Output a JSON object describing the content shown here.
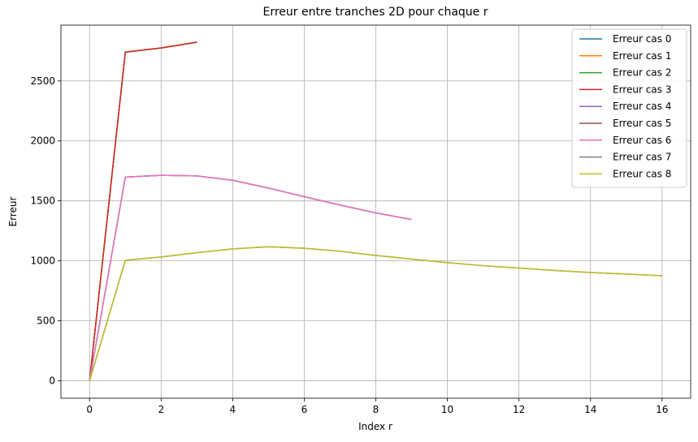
{
  "chart_data": {
    "type": "line",
    "title": "Erreur entre tranches 2D pour chaque r",
    "xlabel": "Index r",
    "ylabel": "Erreur",
    "xlim": [
      -0.8,
      16.8
    ],
    "ylim": [
      -145,
      2965
    ],
    "xticks": [
      0,
      2,
      4,
      6,
      8,
      10,
      12,
      14,
      16
    ],
    "yticks": [
      0,
      500,
      1000,
      1500,
      2000,
      2500
    ],
    "grid": true,
    "legend_position": "top-right",
    "series": [
      {
        "name": "Erreur cas 0",
        "color": "#1f77b4",
        "x": [
          0,
          1,
          2,
          3
        ],
        "values": [
          0,
          2740,
          2775,
          2823
        ]
      },
      {
        "name": "Erreur cas 1",
        "color": "#ff7f0e",
        "x": [
          0,
          1,
          2,
          3
        ],
        "values": [
          0,
          2740,
          2775,
          2823
        ]
      },
      {
        "name": "Erreur cas 2",
        "color": "#2ca02c",
        "x": [
          0,
          1,
          2,
          3
        ],
        "values": [
          0,
          2740,
          2775,
          2823
        ]
      },
      {
        "name": "Erreur cas 3",
        "color": "#d62728",
        "x": [
          0,
          1,
          2,
          3
        ],
        "values": [
          0,
          2740,
          2775,
          2823
        ]
      },
      {
        "name": "Erreur cas 4",
        "color": "#9467bd",
        "x": [
          0,
          1,
          2,
          3,
          4,
          5,
          6,
          7,
          8,
          9
        ],
        "values": [
          0,
          1698,
          1713,
          1708,
          1672,
          1607,
          1535,
          1465,
          1400,
          1345
        ]
      },
      {
        "name": "Erreur cas 5",
        "color": "#8c564b",
        "x": [
          0,
          1,
          2,
          3,
          4,
          5,
          6,
          7,
          8,
          9
        ],
        "values": [
          0,
          1698,
          1713,
          1708,
          1672,
          1607,
          1535,
          1465,
          1400,
          1345
        ]
      },
      {
        "name": "Erreur cas 6",
        "color": "#e377c2",
        "x": [
          0,
          1,
          2,
          3,
          4,
          5,
          6,
          7,
          8,
          9
        ],
        "values": [
          0,
          1698,
          1713,
          1708,
          1672,
          1607,
          1535,
          1465,
          1400,
          1345
        ]
      },
      {
        "name": "Erreur cas 7",
        "color": "#7f7f7f",
        "x": [
          0,
          1,
          2,
          3,
          4,
          5,
          6,
          7,
          8,
          9,
          10,
          11,
          12,
          13,
          14,
          15,
          16
        ],
        "values": [
          0,
          1005,
          1032,
          1068,
          1100,
          1118,
          1105,
          1080,
          1045,
          1015,
          985,
          960,
          940,
          920,
          903,
          890,
          876
        ]
      },
      {
        "name": "Erreur cas 8",
        "color": "#bcbd22",
        "x": [
          0,
          1,
          2,
          3,
          4,
          5,
          6,
          7,
          8,
          9,
          10,
          11,
          12,
          13,
          14,
          15,
          16
        ],
        "values": [
          0,
          1005,
          1032,
          1068,
          1100,
          1118,
          1105,
          1080,
          1045,
          1015,
          985,
          960,
          940,
          920,
          903,
          890,
          876
        ]
      }
    ]
  }
}
